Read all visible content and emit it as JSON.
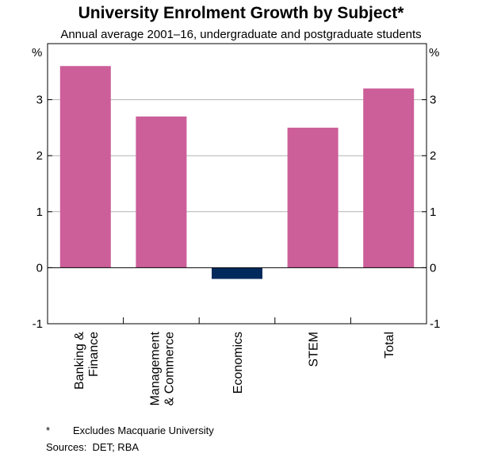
{
  "chart_data": {
    "type": "bar",
    "title": "University Enrolment Growth by Subject*",
    "subtitle": "Annual average 2001–16, undergraduate and postgraduate students",
    "ylabel_left": "%",
    "ylabel_right": "%",
    "ylim": [
      -1,
      4
    ],
    "yticks": [
      -1,
      0,
      1,
      2,
      3
    ],
    "grid": true,
    "categories": [
      [
        "Banking &",
        "Finance"
      ],
      [
        "Management",
        "& Commerce"
      ],
      [
        "Economics"
      ],
      [
        "STEM"
      ],
      [
        "Total"
      ]
    ],
    "values": [
      3.6,
      2.7,
      -0.2,
      2.5,
      3.2
    ],
    "colors": {
      "positive": "#CC5E99",
      "negative": "#002A5C"
    },
    "footnotes": {
      "note_marker": "*",
      "note": "Excludes Macquarie University",
      "sources": "Sources:  DET; RBA"
    }
  }
}
